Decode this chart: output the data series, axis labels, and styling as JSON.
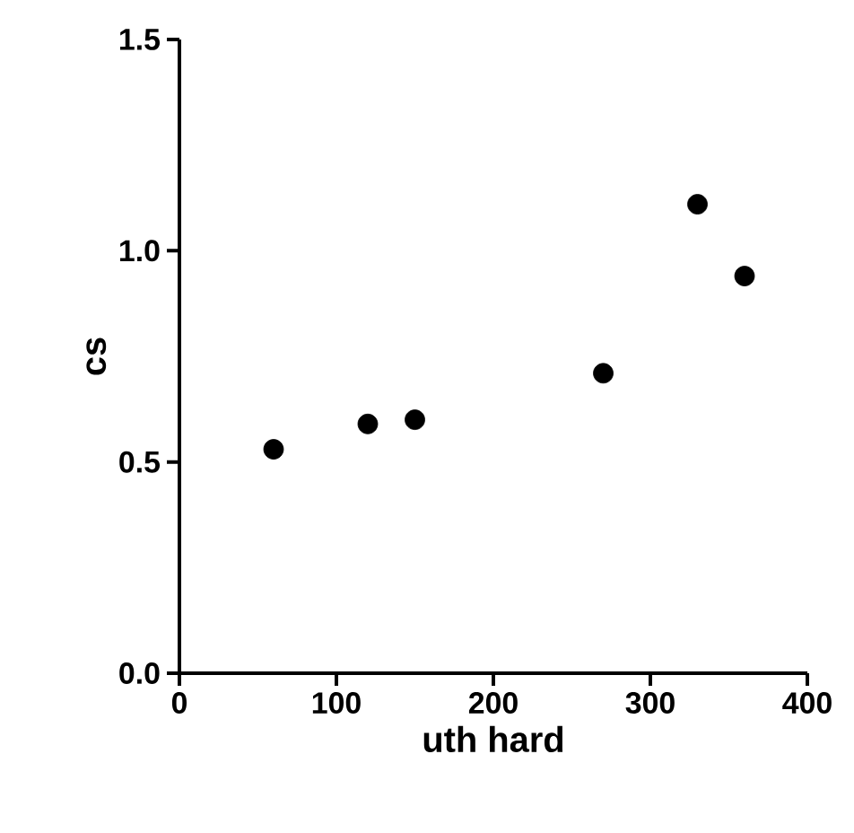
{
  "chart_data": {
    "type": "scatter",
    "xlabel": "uth hard",
    "ylabel": "cs",
    "x": [
      60,
      120,
      150,
      270,
      330,
      360
    ],
    "values": [
      0.53,
      0.59,
      0.6,
      0.71,
      1.11,
      0.94
    ],
    "color": "#000000",
    "grid": false,
    "xlim": [
      0,
      400
    ],
    "ylim": [
      0,
      1.5
    ],
    "xticks": [
      0,
      100,
      200,
      300,
      400
    ],
    "yticks": [
      {
        "value": 0,
        "label": "0.0"
      },
      {
        "value": 0.5,
        "label": "0.5"
      },
      {
        "value": 1.0,
        "label": "1.0"
      },
      {
        "value": 1.5,
        "label": "1.5"
      }
    ]
  }
}
